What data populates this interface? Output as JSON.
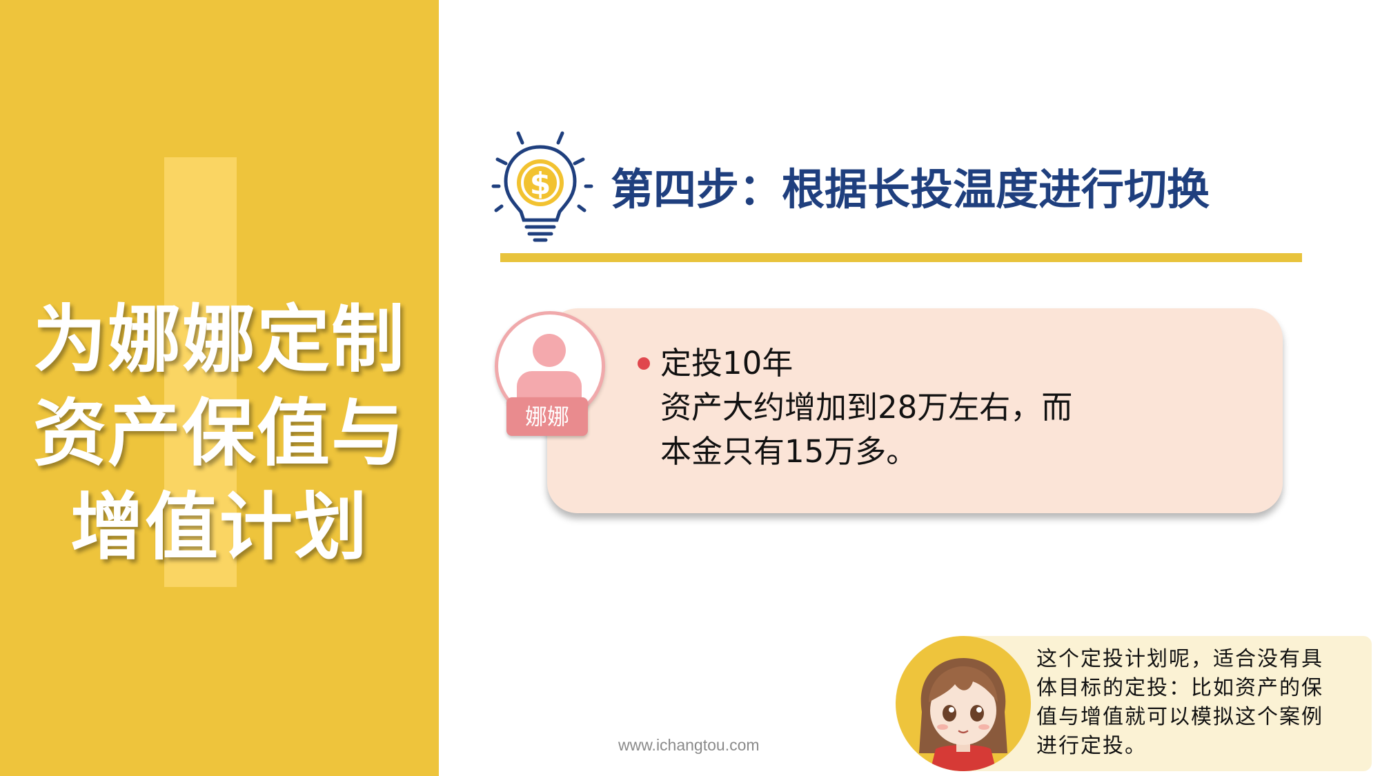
{
  "left_panel": {
    "title_lines": [
      "为娜娜定制",
      "资产保值与",
      "增值计划"
    ]
  },
  "header": {
    "icon": "lightbulb-dollar-icon",
    "title": "第四步：根据长投温度进行切换"
  },
  "card": {
    "avatar_icon": "user-avatar-icon",
    "name_tag": "娜娜",
    "lines": [
      "定投10年",
      "资产大约增加到28万左右，而",
      "本金只有15万多。"
    ]
  },
  "footer": {
    "url": "www.ichangtou.com"
  },
  "speech": {
    "character_icon": "cartoon-girl-icon",
    "lines": [
      "这个定投计划呢，适合没有具",
      "体目标的定投：比如资产的保",
      "值与增值就可以模拟这个案例",
      "进行定投。"
    ]
  },
  "colors": {
    "panel_yellow": "#eec43c",
    "title_navy": "#1f3f7e",
    "card_peach": "#fbe4d7",
    "avatar_pink": "#f4a9ad",
    "name_tag_pink": "#e98b8e",
    "bullet_red": "#e0474d"
  }
}
